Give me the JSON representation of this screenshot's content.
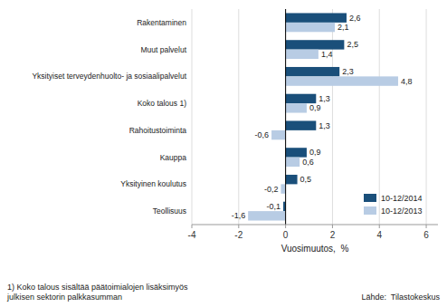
{
  "chart_data": {
    "type": "bar",
    "orientation": "horizontal",
    "categories": [
      "Rakentaminen",
      "Muut palvelut",
      "Yksityiset terveydenhuolto- ja sosiaalipalvelut",
      "Koko talous 1)",
      "Rahoitustoiminta",
      "Kauppa",
      "Yksityinen koulutus",
      "Teollisuus"
    ],
    "series": [
      {
        "name": "10-12/2014",
        "color": "#1a4f7a",
        "values": [
          2.6,
          2.5,
          2.3,
          1.3,
          1.3,
          0.9,
          0.5,
          -0.1
        ],
        "value_labels": [
          "2,6",
          "2,5",
          "2,3",
          "1,3",
          "1,3",
          "0,9",
          "0,5",
          "-0,1"
        ]
      },
      {
        "name": "10-12/2013",
        "color": "#b8cce4",
        "values": [
          2.1,
          1.4,
          4.8,
          0.9,
          -0.6,
          0.6,
          -0.2,
          -1.6
        ],
        "value_labels": [
          "2,1",
          "1,4",
          "4,8",
          "0,9",
          "-0,6",
          "0,6",
          "-0,2",
          "-1,6"
        ]
      }
    ],
    "xlim": [
      -4,
      6.5
    ],
    "xticks": [
      -4,
      -2,
      0,
      2,
      4,
      6
    ],
    "xlabel": "Vuosimuutos,  %",
    "grid": true,
    "legend": "lower right",
    "data_labels": true,
    "annotations": [
      "1) Koko talous sisältää päätoimialojen lisäksimyös\njulkisen sektorin palkkasumman",
      "Lähde:  Tilastokeskus"
    ]
  }
}
